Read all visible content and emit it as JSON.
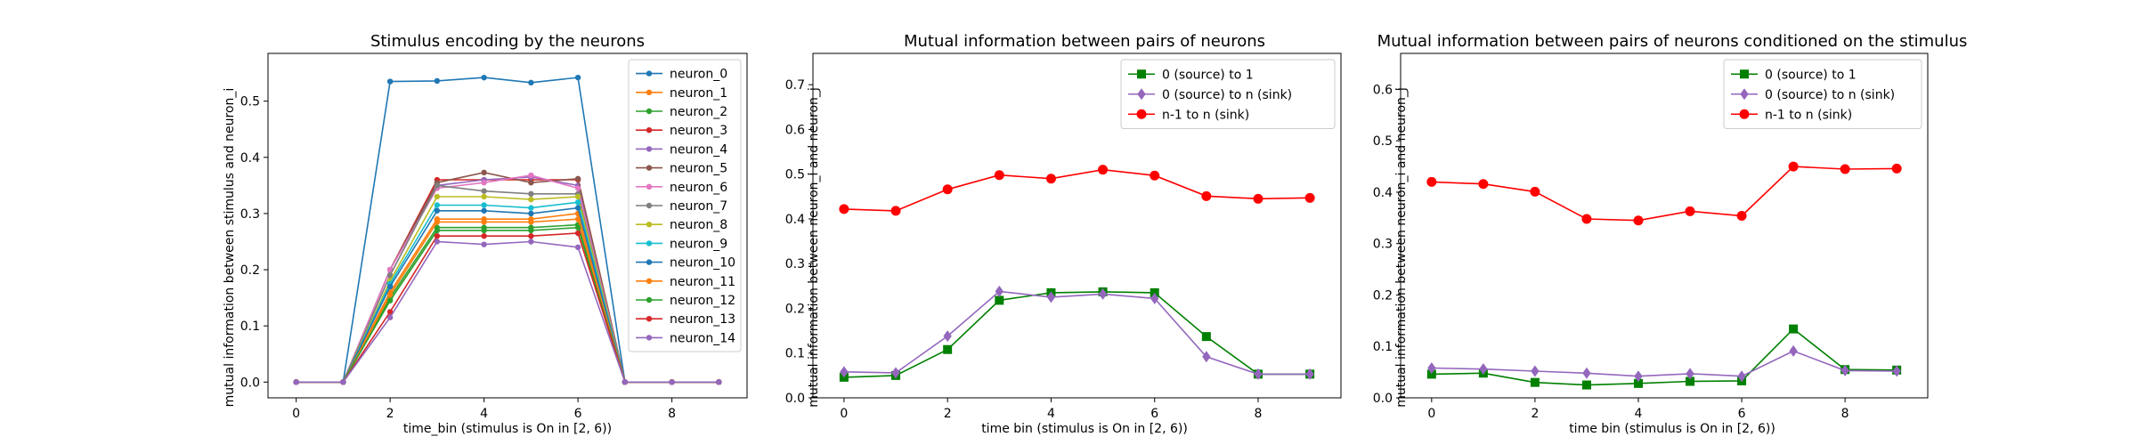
{
  "chart_data": [
    {
      "type": "line",
      "title": "Stimulus encoding by the neurons",
      "xlabel": "time_bin (stimulus is On in [2, 6))",
      "ylabel": "mutual information between stimulus and neuron_i",
      "xlim": [
        -0.6,
        9.6
      ],
      "ylim": [
        -0.028,
        0.585
      ],
      "xticks": [
        0,
        2,
        4,
        6,
        8
      ],
      "yticks": [
        0.0,
        0.1,
        0.2,
        0.3,
        0.4,
        0.5
      ],
      "ytick_decimals": 1,
      "legend_position": "top-right",
      "x": [
        0,
        1,
        2,
        3,
        4,
        5,
        6,
        7,
        8,
        9
      ],
      "series": [
        {
          "name": "neuron_0",
          "color": "#1f77b4",
          "marker": "dot",
          "values": [
            0,
            0,
            0.535,
            0.536,
            0.542,
            0.533,
            0.542,
            0,
            0,
            0
          ]
        },
        {
          "name": "neuron_1",
          "color": "#ff7f0e",
          "marker": "dot",
          "values": [
            0,
            0,
            0.16,
            0.29,
            0.29,
            0.29,
            0.3,
            0,
            0,
            0
          ]
        },
        {
          "name": "neuron_2",
          "color": "#2ca02c",
          "marker": "dot",
          "values": [
            0,
            0,
            0.15,
            0.275,
            0.275,
            0.275,
            0.28,
            0,
            0,
            0
          ]
        },
        {
          "name": "neuron_3",
          "color": "#d62728",
          "marker": "dot",
          "values": [
            0,
            0,
            0.2,
            0.36,
            0.36,
            0.36,
            0.36,
            0,
            0,
            0
          ]
        },
        {
          "name": "neuron_4",
          "color": "#9467bd",
          "marker": "dot",
          "values": [
            0,
            0,
            0.2,
            0.35,
            0.36,
            0.365,
            0.35,
            0,
            0,
            0
          ]
        },
        {
          "name": "neuron_5",
          "color": "#8c564b",
          "marker": "dot",
          "values": [
            0,
            0,
            0.2,
            0.355,
            0.373,
            0.355,
            0.362,
            0,
            0,
            0
          ]
        },
        {
          "name": "neuron_6",
          "color": "#e377c2",
          "marker": "dot",
          "values": [
            0,
            0,
            0.2,
            0.345,
            0.355,
            0.368,
            0.345,
            0,
            0,
            0
          ]
        },
        {
          "name": "neuron_7",
          "color": "#7f7f7f",
          "marker": "dot",
          "values": [
            0,
            0,
            0.19,
            0.35,
            0.34,
            0.335,
            0.335,
            0,
            0,
            0
          ]
        },
        {
          "name": "neuron_8",
          "color": "#bcbd22",
          "marker": "dot",
          "values": [
            0,
            0,
            0.18,
            0.33,
            0.33,
            0.325,
            0.33,
            0,
            0,
            0
          ]
        },
        {
          "name": "neuron_9",
          "color": "#17becf",
          "marker": "dot",
          "values": [
            0,
            0,
            0.175,
            0.315,
            0.315,
            0.31,
            0.32,
            0,
            0,
            0
          ]
        },
        {
          "name": "neuron_10",
          "color": "#1f77b4",
          "marker": "dot",
          "values": [
            0,
            0,
            0.17,
            0.305,
            0.305,
            0.3,
            0.31,
            0,
            0,
            0
          ]
        },
        {
          "name": "neuron_11",
          "color": "#ff7f0e",
          "marker": "dot",
          "values": [
            0,
            0,
            0.155,
            0.285,
            0.285,
            0.285,
            0.29,
            0,
            0,
            0
          ]
        },
        {
          "name": "neuron_12",
          "color": "#2ca02c",
          "marker": "dot",
          "values": [
            0,
            0,
            0.145,
            0.27,
            0.27,
            0.27,
            0.275,
            0,
            0,
            0
          ]
        },
        {
          "name": "neuron_13",
          "color": "#d62728",
          "marker": "dot",
          "values": [
            0,
            0,
            0.125,
            0.26,
            0.26,
            0.26,
            0.265,
            0,
            0,
            0
          ]
        },
        {
          "name": "neuron_14",
          "color": "#9467bd",
          "marker": "dot",
          "values": [
            0,
            0,
            0.115,
            0.25,
            0.245,
            0.25,
            0.24,
            0,
            0,
            0
          ]
        }
      ]
    },
    {
      "type": "line",
      "title": "Mutual information between pairs of neurons",
      "xlabel": "time bin (stimulus is On in [2, 6))",
      "ylabel": "mutual information between neuron_i and neuron_j",
      "xlim": [
        -0.6,
        9.6
      ],
      "ylim": [
        0.0,
        0.77
      ],
      "xticks": [
        0,
        2,
        4,
        6,
        8
      ],
      "yticks": [
        0.0,
        0.1,
        0.2,
        0.3,
        0.4,
        0.5,
        0.6,
        0.7
      ],
      "ytick_decimals": 1,
      "legend_position": "top-right",
      "x": [
        0,
        1,
        2,
        3,
        4,
        5,
        6,
        7,
        8,
        9
      ],
      "series": [
        {
          "name": "0 (source) to 1",
          "color": "#008000",
          "marker": "square",
          "values": [
            0.046,
            0.05,
            0.108,
            0.218,
            0.235,
            0.237,
            0.235,
            0.137,
            0.053,
            0.053
          ]
        },
        {
          "name": "0 (source) to n (sink)",
          "color": "#9467bd",
          "marker": "diamond",
          "values": [
            0.058,
            0.056,
            0.138,
            0.238,
            0.225,
            0.232,
            0.222,
            0.092,
            0.053,
            0.053
          ]
        },
        {
          "name": "n-1 to n (sink)",
          "color": "#ff0000",
          "marker": "circle",
          "values": [
            0.422,
            0.418,
            0.466,
            0.498,
            0.49,
            0.51,
            0.497,
            0.451,
            0.445,
            0.447
          ]
        }
      ]
    },
    {
      "type": "line",
      "title": "Mutual information between pairs of neurons conditioned on the stimulus",
      "xlabel": "time bin (stimulus is On in [2, 6))",
      "ylabel": "mutual information between neuron_i and neuron_j",
      "xlim": [
        -0.6,
        9.6
      ],
      "ylim": [
        0.0,
        0.67
      ],
      "xticks": [
        0,
        2,
        4,
        6,
        8
      ],
      "yticks": [
        0.0,
        0.1,
        0.2,
        0.3,
        0.4,
        0.5,
        0.6
      ],
      "ytick_decimals": 1,
      "legend_position": "top-right",
      "x": [
        0,
        1,
        2,
        3,
        4,
        5,
        6,
        7,
        8,
        9
      ],
      "series": [
        {
          "name": "0 (source) to 1",
          "color": "#008000",
          "marker": "square",
          "values": [
            0.046,
            0.048,
            0.03,
            0.025,
            0.028,
            0.032,
            0.033,
            0.134,
            0.055,
            0.054
          ]
        },
        {
          "name": "0 (source) to n (sink)",
          "color": "#9467bd",
          "marker": "diamond",
          "values": [
            0.058,
            0.056,
            0.052,
            0.048,
            0.042,
            0.047,
            0.042,
            0.091,
            0.053,
            0.052
          ]
        },
        {
          "name": "n-1 to n (sink)",
          "color": "#ff0000",
          "marker": "circle",
          "values": [
            0.42,
            0.416,
            0.401,
            0.348,
            0.345,
            0.363,
            0.354,
            0.45,
            0.445,
            0.446
          ]
        }
      ]
    }
  ]
}
